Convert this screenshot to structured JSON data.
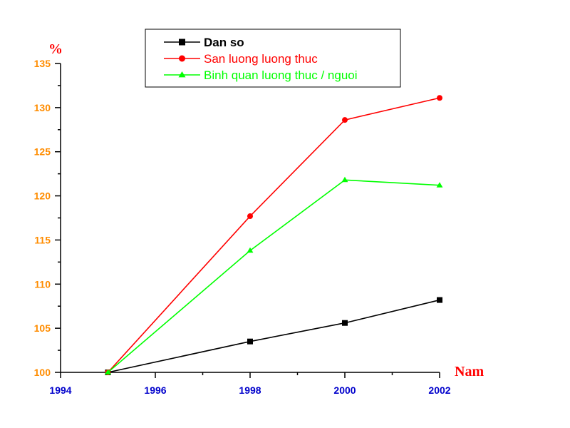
{
  "chart_data": {
    "type": "line",
    "title": "",
    "ylabel": "%",
    "xlabel": "Nam",
    "xlim": [
      1994,
      2002
    ],
    "ylim": [
      100,
      135
    ],
    "x_ticks": [
      1994,
      1996,
      1998,
      2000,
      2002
    ],
    "y_ticks": [
      100,
      105,
      110,
      115,
      120,
      125,
      130,
      135
    ],
    "grid": false,
    "legend_position": "top-center",
    "colors": {
      "x_tick_labels": "#0000cc",
      "y_tick_labels": "#ff8c00",
      "axis_titles": "#ff0000"
    },
    "series": [
      {
        "name": "Dan so",
        "color": "#000000",
        "marker": "square",
        "x": [
          1995,
          1998,
          2000,
          2002
        ],
        "y": [
          100,
          103.5,
          105.6,
          108.2
        ]
      },
      {
        "name": "San luong luong thuc",
        "color": "#ff0000",
        "marker": "circle",
        "x": [
          1995,
          1998,
          2000,
          2002
        ],
        "y": [
          100,
          117.7,
          128.6,
          131.1
        ]
      },
      {
        "name": "Binh quan luong thuc / nguoi",
        "color": "#00ff00",
        "marker": "triangle",
        "x": [
          1995,
          1998,
          2000,
          2002
        ],
        "y": [
          100,
          113.8,
          121.8,
          121.2
        ]
      }
    ]
  }
}
